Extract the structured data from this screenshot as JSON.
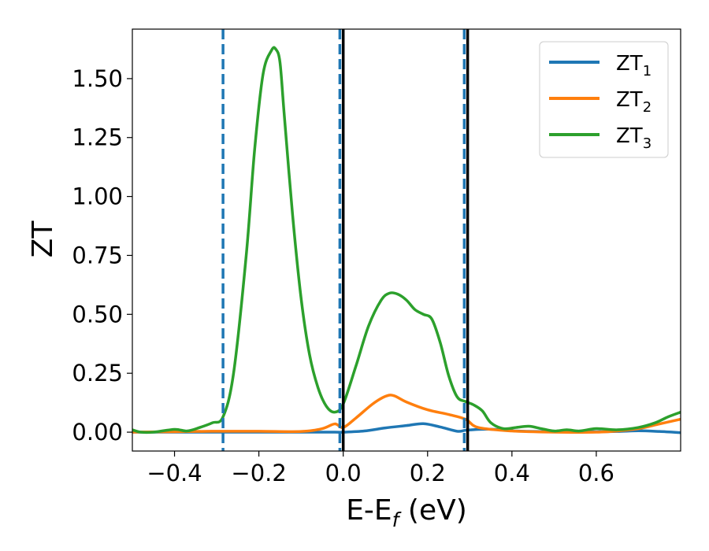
{
  "chart_data": {
    "type": "line",
    "xlabel_main": "E-E",
    "xlabel_sub": "f",
    "xlabel_unit": " (eV)",
    "ylabel": "ZT",
    "xlim": [
      -0.5,
      0.8
    ],
    "ylim": [
      -0.08,
      1.71
    ],
    "x_ticks": [
      -0.4,
      -0.2,
      0.0,
      0.2,
      0.4,
      0.6
    ],
    "x_tick_labels": [
      "−0.4",
      "−0.2",
      "0.0",
      "0.2",
      "0.4",
      "0.6"
    ],
    "y_ticks": [
      0.0,
      0.25,
      0.5,
      0.75,
      1.0,
      1.25,
      1.5
    ],
    "y_tick_labels": [
      "0.00",
      "0.25",
      "0.50",
      "0.75",
      "1.00",
      "1.25",
      "1.50"
    ],
    "legend_position": "top-right",
    "vlines": [
      {
        "x": -0.285,
        "style": "dashed",
        "color": "#1f77b4"
      },
      {
        "x": -0.008,
        "style": "dashed",
        "color": "#1f77b4"
      },
      {
        "x": 0.0,
        "style": "solid",
        "color": "#000000"
      },
      {
        "x": 0.287,
        "style": "dashed",
        "color": "#1f77b4"
      },
      {
        "x": 0.295,
        "style": "solid",
        "color": "#000000"
      }
    ],
    "series": [
      {
        "name_main": "ZT",
        "name_sub": "1",
        "color": "#1f77b4",
        "x": [
          -0.5,
          -0.4,
          -0.3,
          -0.2,
          -0.1,
          -0.02,
          0.0,
          0.05,
          0.1,
          0.15,
          0.19,
          0.23,
          0.27,
          0.29,
          0.32,
          0.36,
          0.4,
          0.45,
          0.5,
          0.55,
          0.6,
          0.65,
          0.7,
          0.75,
          0.8
        ],
        "y": [
          0.0,
          0.0,
          0.0,
          0.0,
          0.0,
          0.0,
          0.0,
          0.005,
          0.018,
          0.028,
          0.036,
          0.022,
          0.004,
          0.008,
          0.012,
          0.012,
          0.006,
          0.003,
          0.002,
          0.003,
          0.002,
          0.003,
          0.006,
          0.003,
          -0.002
        ]
      },
      {
        "name_main": "ZT",
        "name_sub": "2",
        "color": "#ff7f0e",
        "x": [
          -0.5,
          -0.4,
          -0.3,
          -0.2,
          -0.1,
          -0.05,
          -0.02,
          0.0,
          0.03,
          0.07,
          0.1,
          0.12,
          0.15,
          0.2,
          0.25,
          0.29,
          0.32,
          0.4,
          0.5,
          0.6,
          0.65,
          0.7,
          0.75,
          0.8
        ],
        "y": [
          0.0,
          0.002,
          0.004,
          0.004,
          0.003,
          0.015,
          0.035,
          0.02,
          0.06,
          0.12,
          0.152,
          0.155,
          0.128,
          0.095,
          0.075,
          0.055,
          0.02,
          0.005,
          0.0,
          0.0,
          0.005,
          0.015,
          0.035,
          0.055
        ]
      },
      {
        "name_main": "ZT",
        "name_sub": "3",
        "color": "#2ca02c",
        "x": [
          -0.5,
          -0.48,
          -0.45,
          -0.4,
          -0.37,
          -0.34,
          -0.31,
          -0.285,
          -0.26,
          -0.23,
          -0.21,
          -0.19,
          -0.17,
          -0.16,
          -0.15,
          -0.14,
          -0.12,
          -0.1,
          -0.08,
          -0.06,
          -0.04,
          -0.02,
          0.0,
          0.03,
          0.06,
          0.09,
          0.11,
          0.13,
          0.15,
          0.17,
          0.19,
          0.21,
          0.23,
          0.25,
          0.27,
          0.29,
          0.31,
          0.33,
          0.35,
          0.38,
          0.41,
          0.44,
          0.47,
          0.5,
          0.53,
          0.56,
          0.6,
          0.65,
          0.7,
          0.74,
          0.77,
          0.8
        ],
        "y": [
          0.01,
          0.0,
          0.0,
          0.012,
          0.005,
          0.02,
          0.04,
          0.065,
          0.25,
          0.75,
          1.2,
          1.52,
          1.62,
          1.625,
          1.57,
          1.35,
          0.92,
          0.57,
          0.33,
          0.19,
          0.11,
          0.085,
          0.12,
          0.28,
          0.45,
          0.56,
          0.59,
          0.585,
          0.56,
          0.52,
          0.5,
          0.48,
          0.38,
          0.24,
          0.15,
          0.13,
          0.115,
          0.09,
          0.04,
          0.015,
          0.02,
          0.025,
          0.015,
          0.005,
          0.01,
          0.005,
          0.015,
          0.01,
          0.02,
          0.04,
          0.065,
          0.085
        ]
      }
    ]
  }
}
